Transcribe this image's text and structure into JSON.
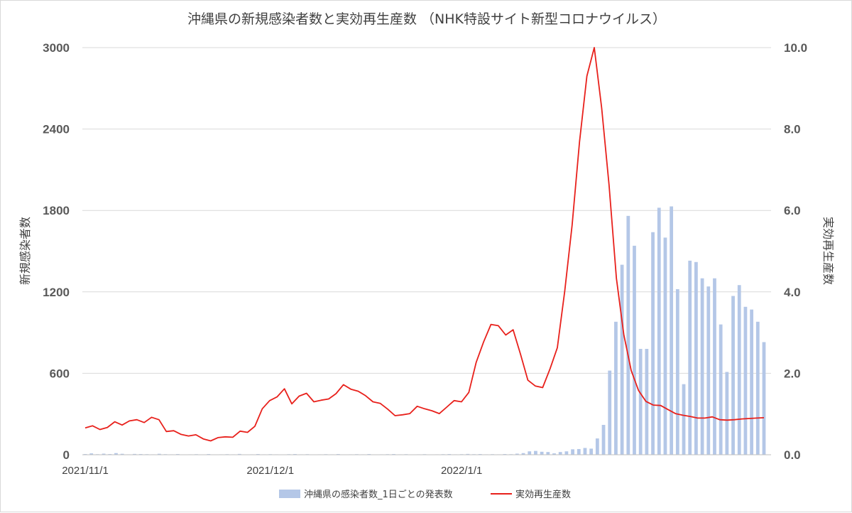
{
  "chart_data": {
    "type": "bar+line",
    "title": "沖縄県の新規感染者数と実効再生産数 （NHK特設サイト新型コロナウイルス）",
    "ylabel_left": "新規感染者数",
    "ylabel_right": "実効再生産数",
    "ylim_left": [
      0,
      3000
    ],
    "ylim_right": [
      0,
      10
    ],
    "yticks_left": [
      "0",
      "600",
      "1200",
      "1800",
      "2400",
      "3000"
    ],
    "yticks_right": [
      "0.0",
      "2.0",
      "4.0",
      "6.0",
      "8.0",
      "10.0"
    ],
    "xticks": [
      "2021/11/1",
      "2021/12/1",
      "2022/1/1"
    ],
    "gridlines": true,
    "legend_position": "bottom",
    "colors": {
      "bars": "#b4c7e7",
      "line": "#e8201b",
      "grid": "#d9d9d9"
    },
    "series": [
      {
        "name": "沖縄県の感染者数_1日ごとの発表数",
        "kind": "bar",
        "axis": "left",
        "values": [
          5,
          10,
          4,
          8,
          5,
          12,
          7,
          3,
          6,
          5,
          4,
          3,
          7,
          4,
          3,
          5,
          2,
          3,
          4,
          2,
          5,
          2,
          3,
          4,
          3,
          6,
          2,
          3,
          5,
          3,
          4,
          3,
          2,
          4,
          5,
          3,
          4,
          2,
          3,
          4,
          3,
          5,
          2,
          3,
          4,
          3,
          5,
          2,
          3,
          4,
          5,
          3,
          4,
          2,
          3,
          4,
          2,
          3,
          4,
          5,
          3,
          4,
          6,
          4,
          5,
          3,
          4,
          3,
          5,
          4,
          8,
          12,
          25,
          28,
          22,
          20,
          10,
          20,
          25,
          40,
          42,
          50,
          45,
          120,
          220,
          620,
          980,
          1400,
          1760,
          1540,
          780,
          780,
          1640,
          1820,
          1600,
          1830,
          1220,
          520,
          1430,
          1420,
          1300,
          1240,
          1300,
          960,
          610,
          1170,
          1250,
          1090,
          1070,
          980,
          830
        ]
      },
      {
        "name": "実効再生産数",
        "kind": "line",
        "axis": "right",
        "values": [
          0.66,
          0.71,
          0.62,
          0.67,
          0.81,
          0.73,
          0.83,
          0.86,
          0.79,
          0.92,
          0.86,
          0.57,
          0.59,
          0.5,
          0.46,
          0.49,
          0.39,
          0.34,
          0.42,
          0.44,
          0.43,
          0.58,
          0.55,
          0.7,
          1.13,
          1.33,
          1.42,
          1.62,
          1.25,
          1.44,
          1.51,
          1.3,
          1.34,
          1.37,
          1.5,
          1.72,
          1.61,
          1.56,
          1.45,
          1.3,
          1.26,
          1.12,
          0.96,
          0.98,
          1.01,
          1.19,
          1.13,
          1.08,
          1.01,
          1.17,
          1.33,
          1.3,
          1.53,
          2.27,
          2.77,
          3.2,
          3.17,
          2.94,
          3.07,
          2.47,
          1.83,
          1.69,
          1.65,
          2.11,
          2.63,
          4.02,
          5.64,
          7.68,
          9.3,
          10.0,
          8.52,
          6.63,
          4.33,
          2.95,
          2.07,
          1.58,
          1.31,
          1.22,
          1.21,
          1.11,
          1.01,
          0.97,
          0.94,
          0.9,
          0.9,
          0.93,
          0.86,
          0.85,
          0.86,
          0.88,
          0.89,
          0.9,
          0.91
        ]
      }
    ]
  }
}
